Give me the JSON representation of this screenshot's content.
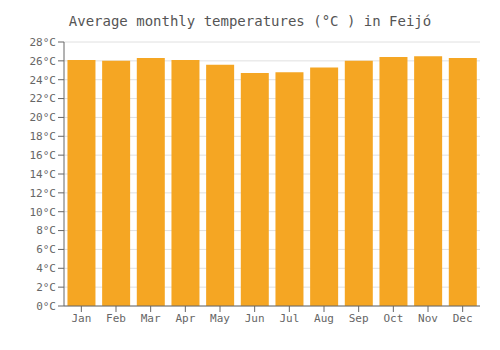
{
  "chart_data": {
    "type": "bar",
    "title": "Average monthly temperatures (°C ) in Feijó",
    "categories": [
      "Jan",
      "Feb",
      "Mar",
      "Apr",
      "May",
      "Jun",
      "Jul",
      "Aug",
      "Sep",
      "Oct",
      "Nov",
      "Dec"
    ],
    "values": [
      26.1,
      26.0,
      26.3,
      26.1,
      25.6,
      24.7,
      24.8,
      25.3,
      26.0,
      26.4,
      26.5,
      26.3
    ],
    "color": "#F5A623",
    "ylim": [
      0,
      28
    ],
    "yticks": [
      {
        "value": 0,
        "label": "0°C"
      },
      {
        "value": 2,
        "label": "2°C"
      },
      {
        "value": 4,
        "label": "4°C"
      },
      {
        "value": 6,
        "label": "6°C"
      },
      {
        "value": 8,
        "label": "8°C"
      },
      {
        "value": 10,
        "label": "10°C"
      },
      {
        "value": 12,
        "label": "12°C"
      },
      {
        "value": 14,
        "label": "14°C"
      },
      {
        "value": 16,
        "label": "16°C"
      },
      {
        "value": 18,
        "label": "18°C"
      },
      {
        "value": 20,
        "label": "20°C"
      },
      {
        "value": 22,
        "label": "22°C"
      },
      {
        "value": 24,
        "label": "24°C"
      },
      {
        "value": 26,
        "label": "26°C"
      },
      {
        "value": 28,
        "label": "28°C"
      }
    ],
    "grid": true
  }
}
